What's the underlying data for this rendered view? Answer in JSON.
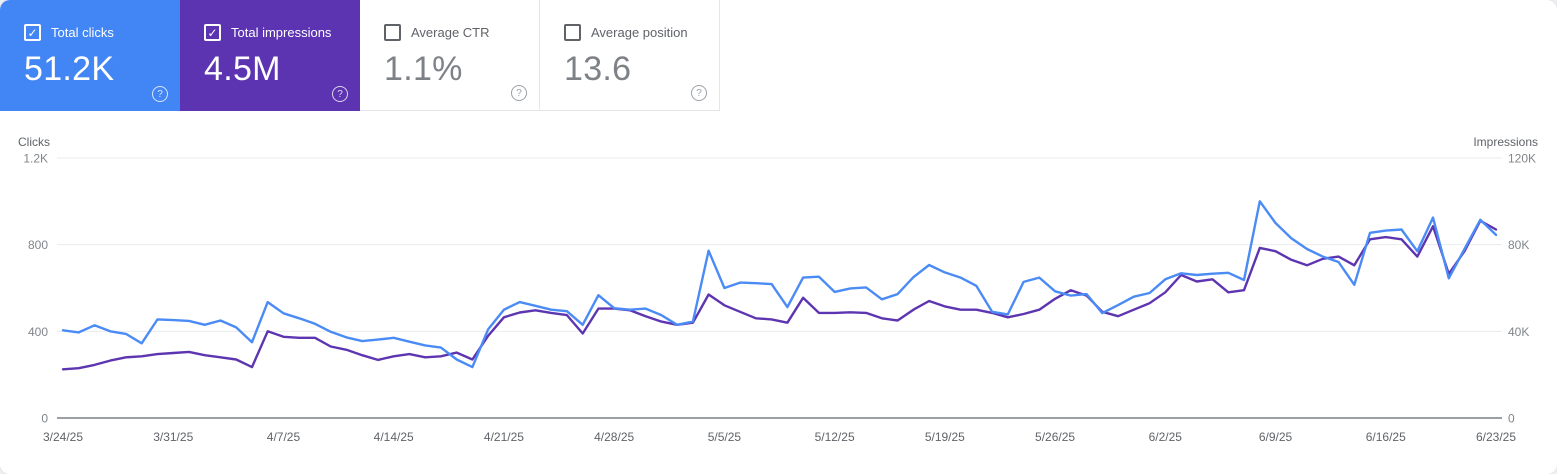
{
  "cards": [
    {
      "label": "Total clicks",
      "value": "51.2K",
      "checked": true,
      "bg": "#4285f4"
    },
    {
      "label": "Total impressions",
      "value": "4.5M",
      "checked": true,
      "bg": "#5c33b0"
    },
    {
      "label": "Average CTR",
      "value": "1.1%",
      "checked": false
    },
    {
      "label": "Average position",
      "value": "13.6",
      "checked": false
    }
  ],
  "icons": {
    "checkbox_check": "✓",
    "help": "?"
  },
  "chart": {
    "left_axis": {
      "title": "Clicks",
      "tick_labels": [
        "0",
        "400",
        "800",
        "1.2K"
      ]
    },
    "right_axis": {
      "title": "Impressions",
      "tick_labels": [
        "0",
        "40K",
        "80K",
        "120K"
      ]
    },
    "x_labels": [
      "3/24/25",
      "3/31/25",
      "4/7/25",
      "4/14/25",
      "4/21/25",
      "4/28/25",
      "5/5/25",
      "5/12/25",
      "5/19/25",
      "5/26/25",
      "6/2/25",
      "6/9/25",
      "6/16/25",
      "6/23/25"
    ],
    "colors": {
      "clicks_line": "#4b8bf5",
      "impressions_line": "#5e35b1",
      "gridline": "#e9ebee",
      "axis_line": "#9aa0a6",
      "clicks_card": "#4285f4",
      "impressions_card": "#5c33b0"
    }
  },
  "chart_data": {
    "type": "line",
    "x_start_date": "3/24/25",
    "x_end_date": "6/23/25",
    "x_frequency": "daily",
    "x_tick_labels": [
      "3/24/25",
      "3/31/25",
      "4/7/25",
      "4/14/25",
      "4/21/25",
      "4/28/25",
      "5/5/25",
      "5/12/25",
      "5/19/25",
      "5/26/25",
      "6/2/25",
      "6/9/25",
      "6/16/25",
      "6/23/25"
    ],
    "left_ylim": [
      0,
      1200
    ],
    "right_ylim": [
      0,
      120000
    ],
    "grid": true,
    "legend_position": "none",
    "series": [
      {
        "name": "Total clicks",
        "axis": "left",
        "color": "#4b8bf5",
        "values": [
          405,
          395,
          428,
          400,
          388,
          345,
          455,
          452,
          448,
          430,
          450,
          418,
          350,
          535,
          483,
          460,
          435,
          398,
          372,
          355,
          362,
          370,
          352,
          335,
          325,
          270,
          235,
          410,
          500,
          535,
          518,
          500,
          493,
          430,
          567,
          507,
          500,
          505,
          475,
          430,
          445,
          772,
          600,
          625,
          622,
          618,
          512,
          648,
          652,
          582,
          598,
          603,
          548,
          572,
          650,
          706,
          672,
          648,
          610,
          490,
          478,
          628,
          648,
          585,
          565,
          572,
          484,
          521,
          560,
          577,
          640,
          668,
          660,
          666,
          670,
          637,
          1000,
          900,
          830,
          780,
          745,
          720,
          615,
          855,
          865,
          870,
          770,
          925,
          645,
          780,
          915,
          845
        ]
      },
      {
        "name": "Total impressions",
        "axis": "right",
        "color": "#5e35b1",
        "values": [
          22500,
          23000,
          24500,
          26500,
          28000,
          28500,
          29500,
          30000,
          30500,
          29000,
          28000,
          27000,
          23500,
          40000,
          37500,
          37000,
          37000,
          33000,
          31500,
          29000,
          26800,
          28500,
          29500,
          28000,
          28500,
          30200,
          27000,
          38000,
          46500,
          48700,
          49700,
          48500,
          47500,
          39000,
          50500,
          50500,
          49700,
          47000,
          44500,
          43000,
          44000,
          57000,
          52000,
          49000,
          46000,
          45500,
          44000,
          55500,
          48500,
          48500,
          48800,
          48500,
          46000,
          45000,
          50000,
          54000,
          51500,
          50000,
          50000,
          48500,
          46500,
          48000,
          50000,
          55000,
          59000,
          56500,
          49000,
          47000,
          50000,
          53000,
          58000,
          66000,
          63000,
          64000,
          58000,
          59000,
          78500,
          77000,
          73000,
          70500,
          73500,
          74500,
          70500,
          82500,
          83500,
          82500,
          74500,
          88500,
          66500,
          77000,
          91000,
          87000
        ]
      }
    ]
  }
}
